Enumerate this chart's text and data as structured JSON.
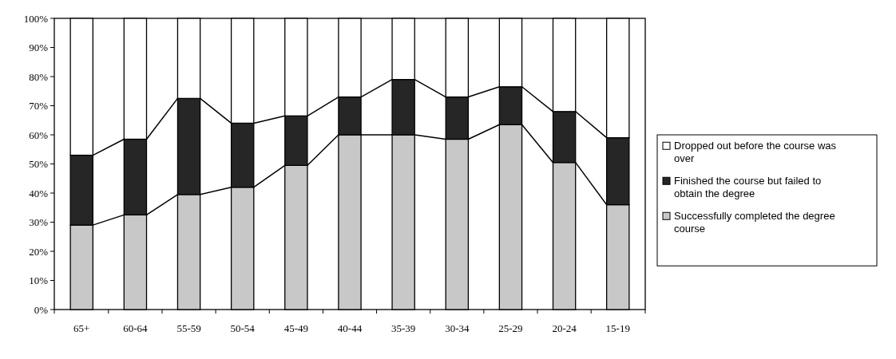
{
  "chart_data": {
    "type": "bar",
    "stacked": true,
    "categories": [
      "65+",
      "60-64",
      "55-59",
      "50-54",
      "45-49",
      "40-44",
      "35-39",
      "30-34",
      "25-29",
      "20-24",
      "15-19"
    ],
    "series": [
      {
        "name": "Successfully completed the degree course",
        "color": "#c8c8c8",
        "values": [
          29,
          32.5,
          39.5,
          42,
          49.5,
          60,
          60,
          58.5,
          63.5,
          50.5,
          36
        ]
      },
      {
        "name": "Finished the course but failed to obtain the degree",
        "color": "#262626",
        "values": [
          24,
          26,
          33,
          22,
          17,
          13,
          19,
          14.5,
          13,
          17.5,
          23
        ]
      },
      {
        "name": "Dropped out before the course was over",
        "color": "#ffffff",
        "values": [
          47,
          41.5,
          27.5,
          36,
          33.5,
          27,
          21,
          27,
          23.5,
          32,
          41
        ]
      }
    ],
    "ylim": [
      0,
      100
    ],
    "yticks": [
      {
        "value": 0,
        "label": "0%"
      },
      {
        "value": 10,
        "label": "10%"
      },
      {
        "value": 20,
        "label": "20%"
      },
      {
        "value": 30,
        "label": "30%"
      },
      {
        "value": 40,
        "label": "40%"
      },
      {
        "value": 50,
        "label": "50%"
      },
      {
        "value": 60,
        "label": "60%"
      },
      {
        "value": 70,
        "label": "70%"
      },
      {
        "value": 80,
        "label": "80%"
      },
      {
        "value": 90,
        "label": "90%"
      },
      {
        "value": 100,
        "label": "100%"
      }
    ],
    "grid": false,
    "legend": "right"
  }
}
